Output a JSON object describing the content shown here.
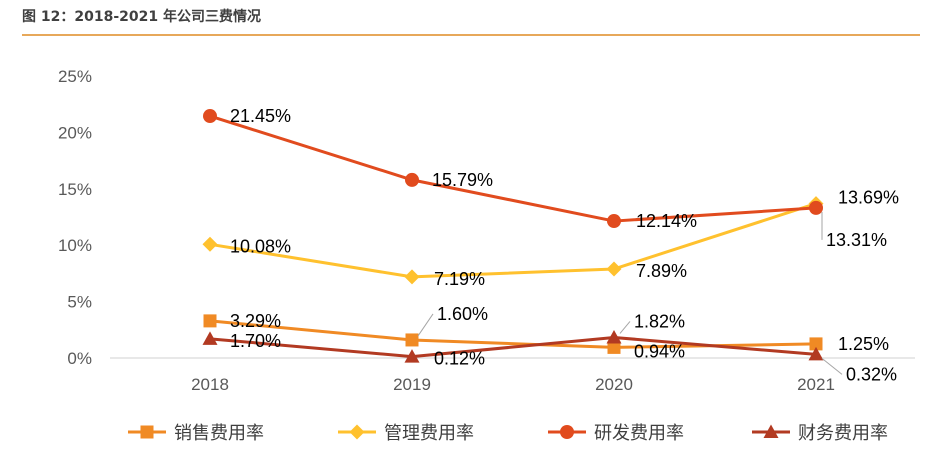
{
  "figure_title": "图 12：2018-2021 年公司三费情况",
  "colors": {
    "销售费用率": "#F08A24",
    "管理费用率": "#FFC12E",
    "研发费用率": "#E14B1E",
    "财务费用率": "#B23A22",
    "title_rule": "#E7A85A"
  },
  "chart_data": {
    "type": "line",
    "title": "",
    "xlabel": "",
    "ylabel": "",
    "categories": [
      "2018",
      "2019",
      "2020",
      "2021"
    ],
    "ylim": [
      0,
      25
    ],
    "yticks": [
      "0%",
      "5%",
      "10%",
      "15%",
      "20%",
      "25%"
    ],
    "ytick_values": [
      0,
      5,
      10,
      15,
      20,
      25
    ],
    "grid": false,
    "legend_position": "bottom",
    "series": [
      {
        "name": "销售费用率",
        "marker": "square",
        "values": [
          3.29,
          1.6,
          0.94,
          1.25
        ],
        "labels": [
          "3.29%",
          "1.60%",
          "0.94%",
          "1.25%"
        ]
      },
      {
        "name": "管理费用率",
        "marker": "diamond",
        "values": [
          10.08,
          7.19,
          7.89,
          13.69
        ],
        "labels": [
          "10.08%",
          "7.19%",
          "7.89%",
          "13.69%"
        ]
      },
      {
        "name": "研发费用率",
        "marker": "circle",
        "values": [
          21.45,
          15.79,
          12.14,
          13.31
        ],
        "labels": [
          "21.45%",
          "15.79%",
          "12.14%",
          "13.31%"
        ]
      },
      {
        "name": "财务费用率",
        "marker": "triangle",
        "values": [
          1.7,
          0.12,
          1.82,
          0.32
        ],
        "labels": [
          "1.70%",
          "0.12%",
          "1.82%",
          "0.32%"
        ]
      }
    ]
  }
}
